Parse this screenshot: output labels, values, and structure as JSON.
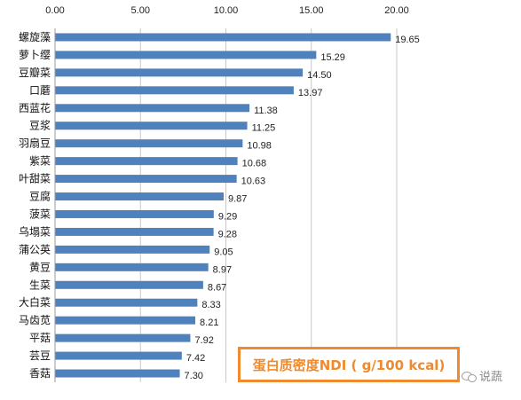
{
  "chart_data": {
    "type": "bar",
    "orientation": "horizontal",
    "categories": [
      "螺旋藻",
      "萝卜缨",
      "豆瓣菜",
      "口蘑",
      "西蓝花",
      "豆浆",
      "羽扇豆",
      "紫菜",
      "叶甜菜",
      "豆腐",
      "菠菜",
      "乌塌菜",
      "蒲公英",
      "黄豆",
      "生菜",
      "大白菜",
      "马齿苋",
      "平菇",
      "芸豆",
      "香菇"
    ],
    "values": [
      19.65,
      15.29,
      14.5,
      13.97,
      11.38,
      11.25,
      10.98,
      10.68,
      10.63,
      9.87,
      9.29,
      9.28,
      9.05,
      8.97,
      8.67,
      8.33,
      8.21,
      7.92,
      7.42,
      7.3
    ],
    "value_labels": [
      "19.65",
      "15.29",
      "14.50",
      "13.97",
      "11.38",
      "11.25",
      "10.98",
      "10.68",
      "10.63",
      "9.87",
      "9.29",
      "9.28",
      "9.05",
      "8.97",
      "8.67",
      "8.33",
      "8.21",
      "7.92",
      "7.42",
      "7.30"
    ],
    "x_ticks": [
      "0.00",
      "5.00",
      "10.00",
      "15.00",
      "20.00"
    ],
    "xlim": [
      0,
      20
    ],
    "x_axis_position": "top",
    "grid": true,
    "bar_color": "#4f81bd",
    "title": "",
    "xlabel": "",
    "ylabel": ""
  },
  "annotation": {
    "text": "蛋白质密度NDI ( g/100 kcal)",
    "color": "#f08a2e"
  },
  "watermark": {
    "text": "说蔬"
  }
}
